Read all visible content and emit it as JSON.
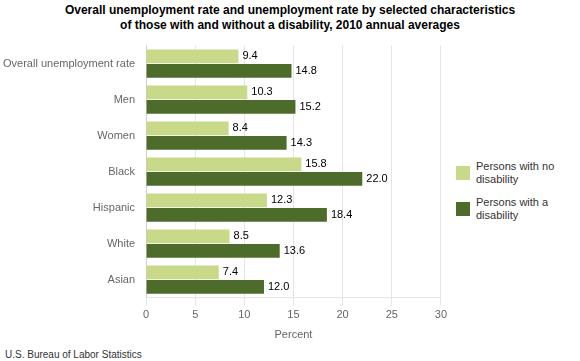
{
  "chart_data": {
    "type": "bar",
    "orientation": "horizontal",
    "title": [
      "Overall unemployment rate and unemployment rate by selected characteristics",
      "of those with and without a disability, 2010 annual averages"
    ],
    "xlabel": "Percent",
    "footnote": "U.S. Bureau of Labor Statistics",
    "categories": [
      "Overall unemployment rate",
      "Men",
      "Women",
      "Black",
      "Hispanic",
      "White",
      "Asian"
    ],
    "series": [
      {
        "name": "Persons with no\ndisability",
        "color": "#c8d98a",
        "values": [
          9.4,
          10.3,
          8.4,
          15.8,
          12.3,
          8.5,
          7.4
        ],
        "value_labels": [
          "9.4",
          "10.3",
          "8.4",
          "15.8",
          "12.3",
          "8.5",
          "7.4"
        ]
      },
      {
        "name": "Persons with a\ndisability",
        "color": "#4d6b2a",
        "values": [
          14.8,
          15.2,
          14.3,
          22.0,
          18.4,
          13.6,
          12.0
        ],
        "value_labels": [
          "14.8",
          "15.2",
          "14.3",
          "22.0",
          "18.4",
          "13.6",
          "12.0"
        ]
      }
    ],
    "xlim": [
      0,
      30
    ],
    "xticks": [
      0,
      5,
      10,
      15,
      20,
      25,
      30
    ],
    "grid": true,
    "legend": "right",
    "data_labels": true
  }
}
